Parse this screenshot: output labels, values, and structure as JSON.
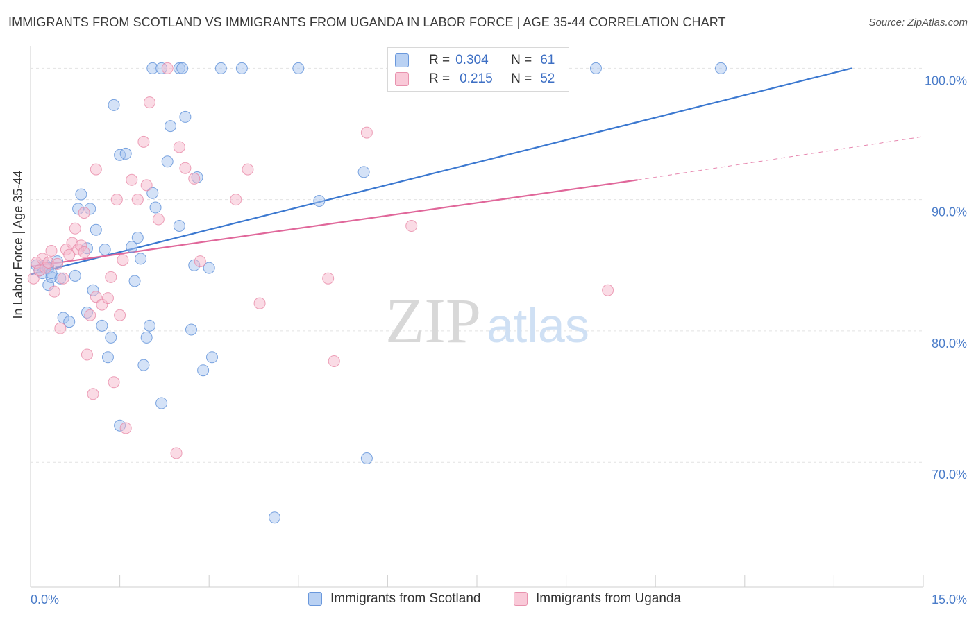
{
  "title": "IMMIGRANTS FROM SCOTLAND VS IMMIGRANTS FROM UGANDA IN LABOR FORCE | AGE 35-44 CORRELATION CHART",
  "source": "Source: ZipAtlas.com",
  "watermark": "ZIPatlas",
  "colors": {
    "scotland_fill": "#a9c6f0",
    "scotland_stroke": "#5b8fd8",
    "scotland_line": "#3b78d0",
    "uganda_fill": "#f6b8cb",
    "uganda_stroke": "#e88aa8",
    "uganda_line": "#e0679a",
    "axis_text": "#4a7cc9",
    "grid": "#e2e2e2"
  },
  "stats": {
    "r_label": "R =",
    "n_label": "N =",
    "scotland": {
      "r": "0.304",
      "n": "61"
    },
    "uganda": {
      "r": "0.215",
      "n": "52"
    }
  },
  "legend": {
    "scotland": "Immigrants from Scotland",
    "uganda": "Immigrants from Uganda"
  },
  "chart_data": {
    "type": "scatter",
    "ylabel": "In Labor Force | Age 35-44",
    "xlabel": "",
    "xlim": [
      0,
      15
    ],
    "ylim": [
      60.5,
      101.5
    ],
    "x_tick_labels": [
      "0.0%",
      "15.0%"
    ],
    "y_ticks": [
      70,
      80,
      90,
      100
    ],
    "y_tick_labels": [
      "70.0%",
      "80.0%",
      "90.0%",
      "100.0%"
    ],
    "grid": true,
    "legend_position": "bottom",
    "series": [
      {
        "name": "Immigrants from Scotland",
        "points": [
          [
            0.1,
            85.0
          ],
          [
            0.15,
            84.6
          ],
          [
            0.2,
            84.4
          ],
          [
            0.25,
            85.0
          ],
          [
            0.3,
            83.5
          ],
          [
            0.35,
            84.1
          ],
          [
            0.45,
            85.3
          ],
          [
            0.5,
            84.0
          ],
          [
            0.55,
            81.0
          ],
          [
            0.65,
            80.7
          ],
          [
            0.75,
            84.2
          ],
          [
            0.8,
            89.3
          ],
          [
            0.85,
            90.4
          ],
          [
            0.95,
            86.3
          ],
          [
            0.95,
            81.4
          ],
          [
            1.0,
            89.3
          ],
          [
            1.05,
            83.1
          ],
          [
            1.1,
            87.7
          ],
          [
            1.2,
            80.4
          ],
          [
            1.25,
            86.2
          ],
          [
            1.3,
            78.0
          ],
          [
            1.35,
            79.5
          ],
          [
            1.4,
            97.2
          ],
          [
            1.5,
            93.4
          ],
          [
            1.5,
            72.8
          ],
          [
            1.6,
            93.5
          ],
          [
            1.7,
            86.4
          ],
          [
            1.75,
            83.8
          ],
          [
            1.8,
            87.1
          ],
          [
            1.85,
            85.5
          ],
          [
            1.9,
            77.4
          ],
          [
            1.95,
            79.5
          ],
          [
            2.0,
            80.4
          ],
          [
            2.05,
            90.5
          ],
          [
            2.1,
            89.4
          ],
          [
            2.05,
            100.0
          ],
          [
            2.2,
            100.0
          ],
          [
            2.2,
            74.5
          ],
          [
            2.3,
            92.9
          ],
          [
            2.35,
            95.6
          ],
          [
            2.5,
            100.0
          ],
          [
            2.55,
            100.0
          ],
          [
            2.5,
            88.0
          ],
          [
            2.6,
            96.3
          ],
          [
            2.7,
            80.1
          ],
          [
            2.75,
            85.0
          ],
          [
            2.8,
            91.7
          ],
          [
            2.9,
            77.0
          ],
          [
            3.0,
            84.8
          ],
          [
            3.05,
            78.0
          ],
          [
            3.2,
            100.0
          ],
          [
            3.55,
            100.0
          ],
          [
            4.1,
            65.8
          ],
          [
            4.5,
            100.0
          ],
          [
            4.85,
            89.9
          ],
          [
            5.6,
            92.1
          ],
          [
            5.65,
            70.3
          ],
          [
            9.5,
            100.0
          ],
          [
            11.6,
            100.0
          ],
          [
            0.3,
            84.8
          ],
          [
            0.35,
            84.4
          ]
        ],
        "trend": {
          "x": [
            0.0,
            13.8
          ],
          "y": [
            84.3,
            100.0
          ]
        }
      },
      {
        "name": "Immigrants from Uganda",
        "points": [
          [
            0.05,
            84.0
          ],
          [
            0.1,
            85.2
          ],
          [
            0.15,
            84.6
          ],
          [
            0.2,
            85.5
          ],
          [
            0.25,
            84.8
          ],
          [
            0.3,
            85.2
          ],
          [
            0.35,
            86.1
          ],
          [
            0.4,
            83.0
          ],
          [
            0.45,
            85.1
          ],
          [
            0.5,
            80.2
          ],
          [
            0.55,
            84.0
          ],
          [
            0.6,
            86.2
          ],
          [
            0.65,
            85.8
          ],
          [
            0.7,
            86.7
          ],
          [
            0.75,
            87.8
          ],
          [
            0.8,
            86.2
          ],
          [
            0.85,
            86.5
          ],
          [
            0.9,
            89.0
          ],
          [
            0.9,
            86.0
          ],
          [
            0.95,
            78.2
          ],
          [
            1.0,
            81.2
          ],
          [
            1.05,
            75.2
          ],
          [
            1.1,
            82.6
          ],
          [
            1.1,
            92.3
          ],
          [
            1.2,
            82.0
          ],
          [
            1.3,
            82.5
          ],
          [
            1.35,
            84.1
          ],
          [
            1.4,
            76.1
          ],
          [
            1.45,
            90.0
          ],
          [
            1.5,
            81.2
          ],
          [
            1.55,
            85.4
          ],
          [
            1.6,
            72.6
          ],
          [
            1.7,
            91.5
          ],
          [
            1.8,
            90.0
          ],
          [
            1.9,
            94.4
          ],
          [
            1.95,
            91.1
          ],
          [
            2.0,
            97.4
          ],
          [
            2.15,
            88.5
          ],
          [
            2.3,
            100.0
          ],
          [
            2.45,
            70.7
          ],
          [
            2.5,
            94.0
          ],
          [
            2.6,
            92.4
          ],
          [
            2.75,
            91.6
          ],
          [
            2.85,
            85.3
          ],
          [
            3.45,
            90.0
          ],
          [
            3.65,
            92.3
          ],
          [
            3.85,
            82.1
          ],
          [
            5.0,
            84.0
          ],
          [
            5.1,
            77.7
          ],
          [
            5.65,
            95.1
          ],
          [
            6.4,
            88.0
          ],
          [
            9.7,
            83.1
          ]
        ],
        "trend": {
          "x": [
            0.0,
            10.2
          ],
          "y": [
            84.9,
            91.5
          ]
        },
        "trend_extension": {
          "x": [
            10.2,
            15.0
          ],
          "y": [
            91.5,
            94.8
          ]
        }
      }
    ]
  }
}
